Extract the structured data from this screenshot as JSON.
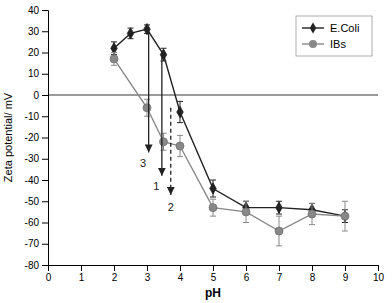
{
  "chart_data": {
    "type": "line",
    "xlabel": "pH",
    "ylabel": "Zeta potential/ mV",
    "xlim": [
      0,
      10
    ],
    "ylim": [
      -80,
      40
    ],
    "xticks": [
      0,
      1,
      2,
      3,
      4,
      5,
      6,
      7,
      8,
      9,
      10
    ],
    "yticks": [
      -80,
      -70,
      -60,
      -50,
      -40,
      -30,
      -20,
      -10,
      0,
      10,
      20,
      30,
      40
    ],
    "legend": "upper right",
    "series": [
      {
        "name": "E.Coli",
        "color": "#222222",
        "marker": "diamond",
        "x": [
          2,
          2.5,
          3,
          3.5,
          4,
          5,
          6,
          7,
          8,
          9
        ],
        "values": [
          22,
          29,
          31,
          19,
          -8,
          -44,
          -53,
          -53,
          -54,
          -57
        ],
        "errors": [
          3,
          2.5,
          2,
          3,
          5,
          4,
          3,
          3,
          3,
          3
        ]
      },
      {
        "name": "IBs",
        "color": "#888888",
        "marker": "circle",
        "x": [
          2,
          3,
          3.5,
          4,
          5,
          6,
          7,
          8,
          9
        ],
        "values": [
          17,
          -6,
          -22,
          -24,
          -53,
          -55,
          -64,
          -56,
          -57
        ],
        "errors": [
          3,
          4,
          4,
          5,
          4,
          5,
          7,
          5,
          7
        ]
      }
    ],
    "hlines": [
      0
    ],
    "annotations": [
      {
        "text": "3",
        "x": 3.05,
        "y_start": 31,
        "y_end": -27,
        "label_x": 2.88,
        "label_y": -30,
        "line_style": "solid",
        "color": "#222222"
      },
      {
        "text": "1",
        "x": 3.45,
        "y_start": 19,
        "y_end": -38,
        "label_x": 3.28,
        "label_y": -41,
        "line_style": "solid",
        "color": "#222222"
      },
      {
        "text": "2",
        "x": 3.72,
        "y_start": -6,
        "y_end": -47,
        "label_x": 3.72,
        "label_y": -51,
        "line_style": "dashed",
        "color": "#222222"
      }
    ]
  }
}
